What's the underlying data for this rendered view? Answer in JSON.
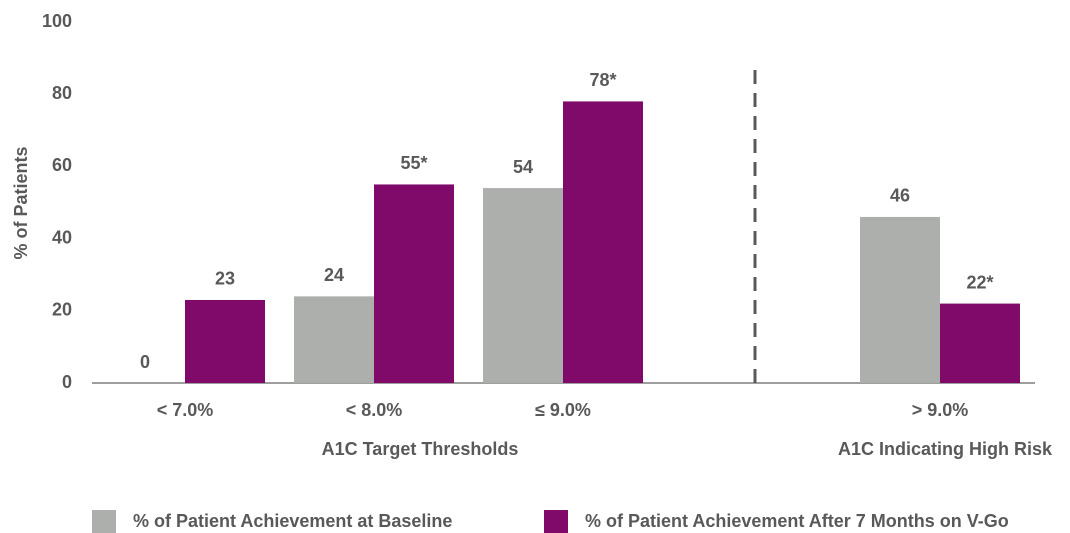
{
  "chart_data": {
    "type": "bar",
    "ylabel": "% of Patients",
    "categories": [
      "< 7.0%",
      "< 8.0%",
      "≤ 9.0%",
      "> 9.0%"
    ],
    "group_labels": [
      "A1C Target Thresholds",
      "A1C Indicating High Risk"
    ],
    "series": [
      {
        "name": "% of Patient Achievement at Baseline",
        "color": "#adafad",
        "values": [
          0,
          24,
          54,
          46
        ]
      },
      {
        "name": "% of Patient Achievement After 7 Months on V-Go",
        "color": "#7f0a6a",
        "values": [
          23,
          55,
          78,
          22
        ],
        "value_labels": [
          "23",
          "55*",
          "78*",
          "22*"
        ]
      }
    ],
    "ylim": [
      0,
      100
    ],
    "yticks": [
      0,
      20,
      40,
      60,
      80,
      100
    ],
    "grid": false
  }
}
